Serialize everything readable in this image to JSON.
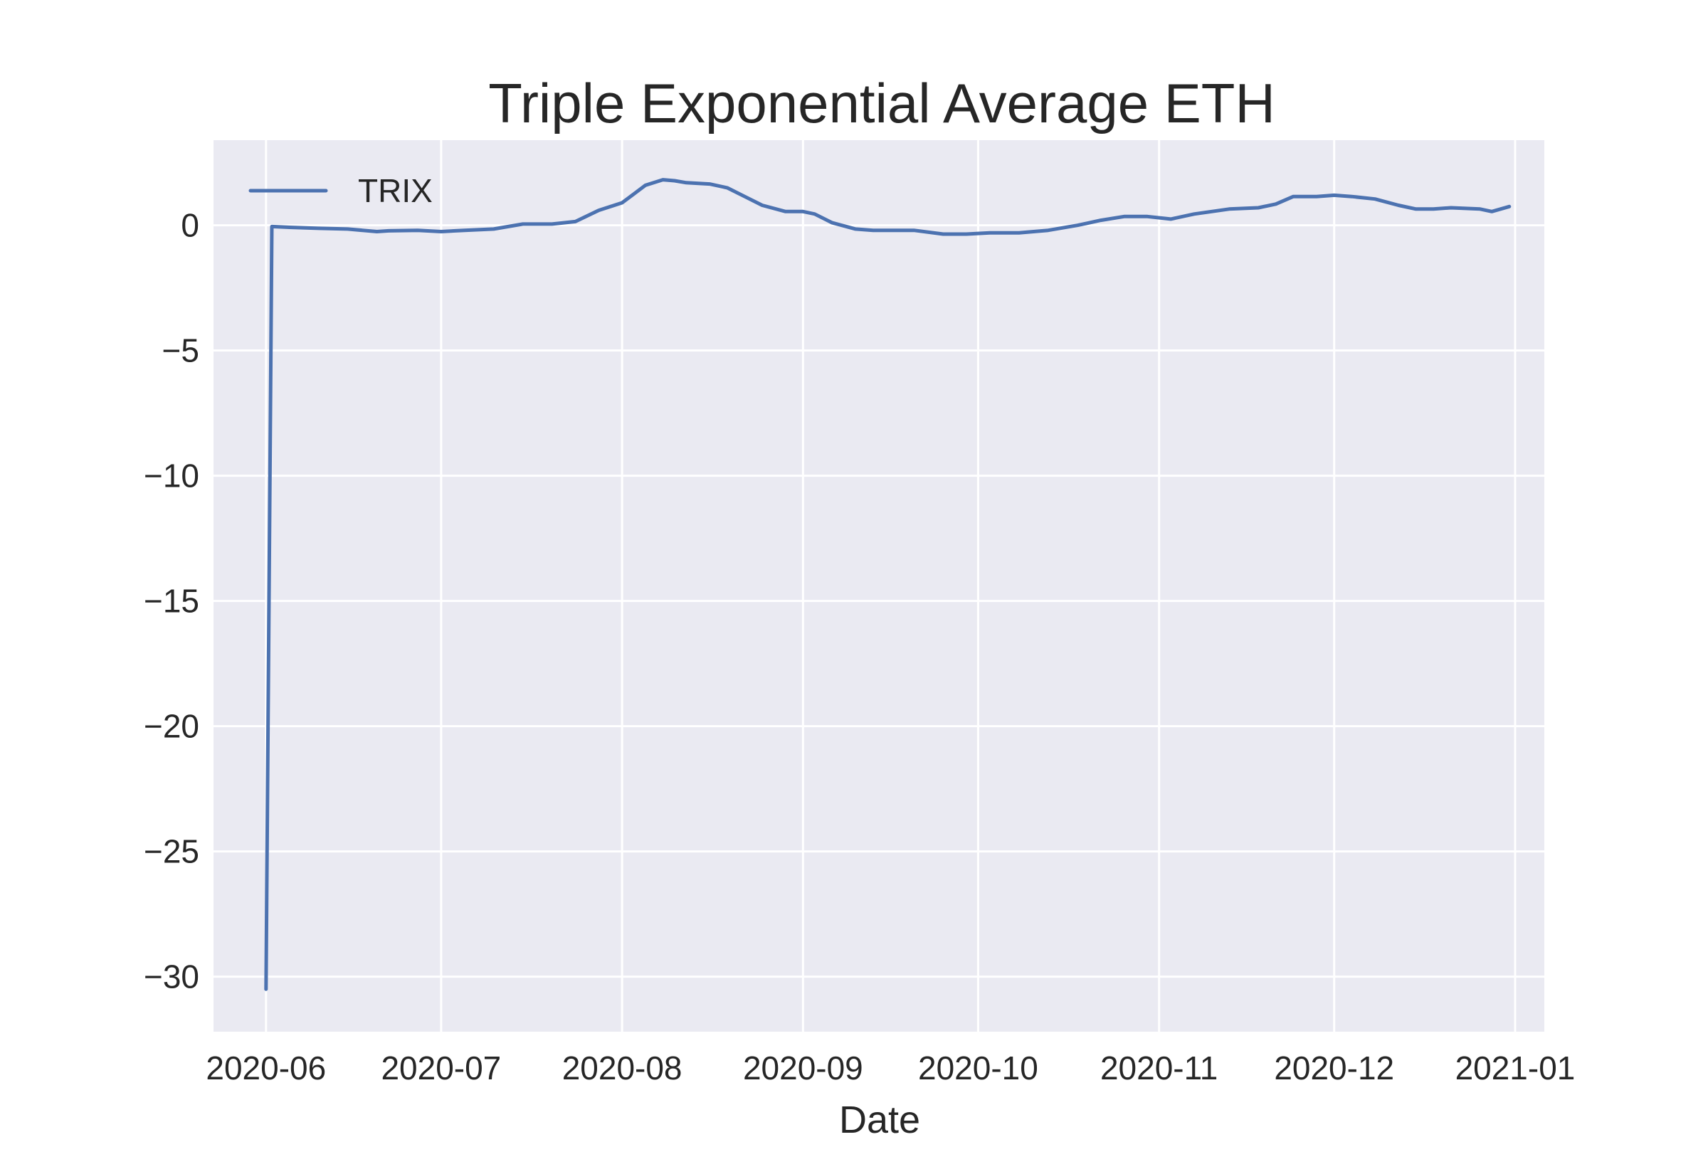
{
  "chart_data": {
    "type": "line",
    "title": "Triple Exponential Average ETH",
    "xlabel": "Date",
    "ylabel": "",
    "x_type": "date",
    "xlim": [
      "2020-05-23",
      "2021-01-06"
    ],
    "ylim": [
      -32.2,
      3.4
    ],
    "xticks": [
      "2020-06-01",
      "2020-07-01",
      "2020-08-01",
      "2020-09-01",
      "2020-10-01",
      "2020-11-01",
      "2020-12-01",
      "2021-01-01"
    ],
    "xtick_labels": [
      "2020-06",
      "2020-07",
      "2020-08",
      "2020-09",
      "2020-10",
      "2020-11",
      "2020-12",
      "2021-01"
    ],
    "yticks": [
      0,
      -5,
      -10,
      -15,
      -20,
      -25,
      -30
    ],
    "ytick_labels": [
      "0",
      "−5",
      "−10",
      "−15",
      "−20",
      "−25",
      "−30"
    ],
    "grid": true,
    "legend": "top-left",
    "series": [
      {
        "name": "TRIX",
        "color": "#4c72b0",
        "x": [
          "2020-06-01",
          "2020-06-02",
          "2020-06-05",
          "2020-06-10",
          "2020-06-15",
          "2020-06-20",
          "2020-06-22",
          "2020-06-27",
          "2020-07-01",
          "2020-07-05",
          "2020-07-10",
          "2020-07-15",
          "2020-07-20",
          "2020-07-24",
          "2020-07-28",
          "2020-08-01",
          "2020-08-05",
          "2020-08-08",
          "2020-08-10",
          "2020-08-12",
          "2020-08-16",
          "2020-08-19",
          "2020-08-22",
          "2020-08-25",
          "2020-08-29",
          "2020-09-01",
          "2020-09-03",
          "2020-09-06",
          "2020-09-10",
          "2020-09-13",
          "2020-09-16",
          "2020-09-20",
          "2020-09-25",
          "2020-09-29",
          "2020-10-03",
          "2020-10-08",
          "2020-10-13",
          "2020-10-18",
          "2020-10-22",
          "2020-10-26",
          "2020-10-30",
          "2020-11-03",
          "2020-11-07",
          "2020-11-13",
          "2020-11-18",
          "2020-11-21",
          "2020-11-24",
          "2020-11-28",
          "2020-12-01",
          "2020-12-04",
          "2020-12-08",
          "2020-12-12",
          "2020-12-15",
          "2020-12-18",
          "2020-12-21",
          "2020-12-26",
          "2020-12-28",
          "2020-12-31"
        ],
        "values": [
          -30.5,
          -0.05,
          -0.08,
          -0.12,
          -0.15,
          -0.25,
          -0.22,
          -0.2,
          -0.25,
          -0.2,
          -0.15,
          0.05,
          0.05,
          0.15,
          0.6,
          0.9,
          1.6,
          1.82,
          1.78,
          1.7,
          1.65,
          1.5,
          1.15,
          0.8,
          0.55,
          0.55,
          0.45,
          0.1,
          -0.15,
          -0.2,
          -0.2,
          -0.2,
          -0.35,
          -0.35,
          -0.3,
          -0.3,
          -0.2,
          0.0,
          0.2,
          0.35,
          0.35,
          0.25,
          0.45,
          0.65,
          0.7,
          0.85,
          1.15,
          1.15,
          1.2,
          1.15,
          1.05,
          0.8,
          0.65,
          0.65,
          0.7,
          0.65,
          0.55,
          0.75
        ]
      }
    ]
  }
}
